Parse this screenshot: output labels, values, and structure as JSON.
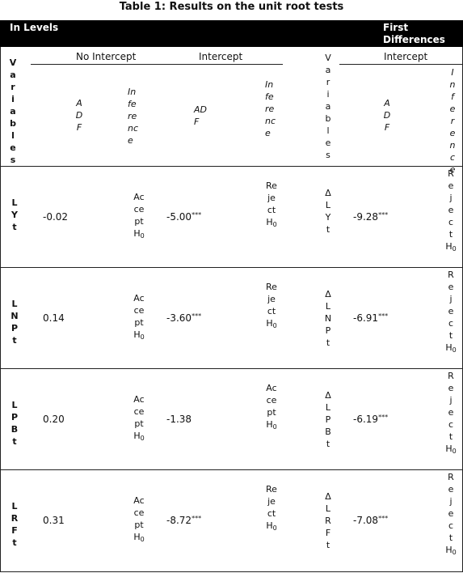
{
  "table": {
    "title": "Table 1: Results on the unit root tests",
    "sections": {
      "levels": "In Levels",
      "first_diff_line1": "First",
      "first_diff_line2": "Differences"
    },
    "groups": {
      "no_intercept": "No Intercept",
      "intercept": "Intercept",
      "intercept_fd": "Intercept"
    },
    "col_labels": {
      "variables": "Variables",
      "adf": "ADF",
      "inference": "Inference"
    },
    "rows": [
      {
        "var": "LYt",
        "dvar": "ΔLYt",
        "noint_adf": "-0.02",
        "noint_inf": "Accept H",
        "noint_inf_sub": "0",
        "int_adf": "-5.00",
        "int_adf_star": "***",
        "int_inf": "Reject H",
        "int_inf_sub": "0",
        "fd_adf": "-9.28",
        "fd_adf_star": "***",
        "fd_inf": "Reject H",
        "fd_inf_sub": "0"
      },
      {
        "var": "LNPt",
        "dvar": "ΔLNPt",
        "noint_adf": "0.14",
        "noint_inf": "Accept H",
        "noint_inf_sub": "0",
        "int_adf": "-3.60",
        "int_adf_star": "***",
        "int_inf": "Reject H",
        "int_inf_sub": "0",
        "fd_adf": "-6.91",
        "fd_adf_star": "***",
        "fd_inf": "Reject H",
        "fd_inf_sub": "0"
      },
      {
        "var": "LPBt",
        "dvar": "ΔLPBt",
        "noint_adf": "0.20",
        "noint_inf": "Accept H",
        "noint_inf_sub": "0",
        "int_adf": "-1.38",
        "int_adf_star": "",
        "int_inf": "Accept H",
        "int_inf_sub": "0",
        "fd_adf": "-6.19",
        "fd_adf_star": "***",
        "fd_inf": "Reject H",
        "fd_inf_sub": "0"
      },
      {
        "var": "LRFt",
        "dvar": "ΔLRFt",
        "noint_adf": "0.31",
        "noint_inf": "Accept H",
        "noint_inf_sub": "0",
        "int_adf": "-8.72",
        "int_adf_star": "***",
        "int_inf": "Reject H",
        "int_inf_sub": "0",
        "fd_adf": "-7.08",
        "fd_adf_star": "***",
        "fd_inf": "Reject H",
        "fd_inf_sub": "0"
      }
    ]
  }
}
